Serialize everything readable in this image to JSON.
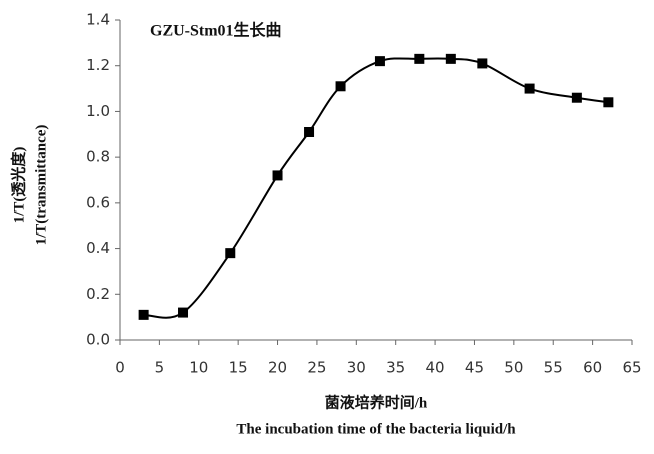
{
  "chart_data": {
    "type": "line",
    "title": "GZU-Stm01生长曲",
    "x_label": [
      "菌液培养时间/h",
      "The incubation time of the bacteria liquid/h"
    ],
    "y_label": [
      "1/T(透光度)",
      "1/T(transmittance)"
    ],
    "x": [
      3,
      8,
      14,
      20,
      24,
      28,
      33,
      38,
      42,
      46,
      52,
      58,
      62
    ],
    "series": [
      {
        "color": "#000000",
        "values": [
          0.11,
          0.12,
          0.38,
          0.72,
          0.91,
          1.11,
          1.22,
          1.23,
          1.23,
          1.21,
          1.1,
          1.06,
          1.04
        ]
      }
    ],
    "xlim": [
      0,
      65
    ],
    "xticks": [
      0,
      5,
      10,
      15,
      20,
      25,
      30,
      35,
      40,
      45,
      50,
      55,
      60,
      65
    ],
    "ylim": [
      0,
      1.4
    ],
    "yticks": [
      {
        "value": 0,
        "label": "0.0"
      },
      0.2,
      0.4,
      0.6,
      0.8,
      {
        "value": 1,
        "label": "1.0"
      },
      1.2,
      1.4
    ],
    "grid": false,
    "smooth": true,
    "marker": "square"
  }
}
